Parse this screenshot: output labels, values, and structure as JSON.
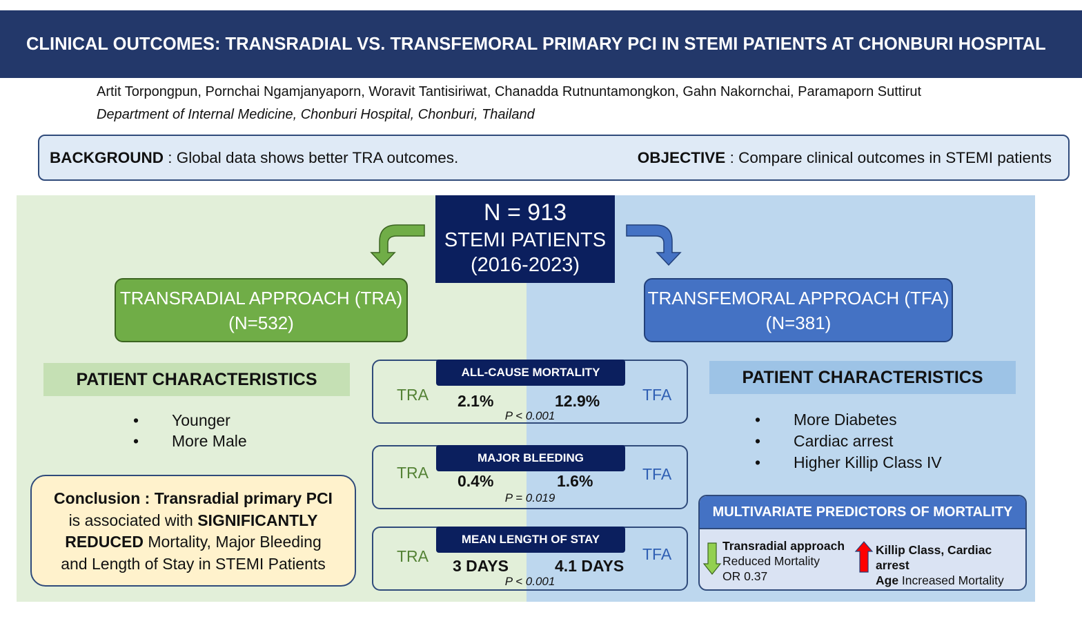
{
  "title": "CLINICAL OUTCOMES: TRANSRADIAL VS. TRANSFEMORAL PRIMARY PCI IN STEMI PATIENTS AT CHONBURI HOSPITAL",
  "authors": "Artit Torpongpun, Pornchai Ngamjanyaporn, Woravit Tantisiriwat, Chanadda Rutnuntamongkon, Gahn Nakornchai, Paramaporn Suttirut",
  "affiliation": "Department of Internal Medicine, Chonburi Hospital, Chonburi, Thailand",
  "background": {
    "label": "BACKGROUND",
    "text": " : Global data shows better TRA outcomes."
  },
  "objective": {
    "label": "OBJECTIVE",
    "text": " : Compare clinical outcomes in STEMI patients"
  },
  "total": {
    "n": "N = 913",
    "line2": "STEMI PATIENTS",
    "line3": "(2016-2023)"
  },
  "tra": {
    "title": "TRANSRADIAL APPROACH (TRA)",
    "n": "(N=532)",
    "pc_title": "PATIENT CHARACTERISTICS",
    "items": [
      "Younger",
      "More Male"
    ]
  },
  "tfa": {
    "title": "TRANSFEMORAL APPROACH (TFA)",
    "n": "(N=381)",
    "pc_title": "PATIENT CHARACTERISTICS",
    "items": [
      "More Diabetes",
      "Cardiac arrest",
      "Higher Killip Class IV"
    ]
  },
  "bullet": "•",
  "outcomes": [
    {
      "title": "ALL-CAUSE MORTALITY",
      "tra_label": "TRA",
      "tfa_label": "TFA",
      "tra": "2.1%",
      "tfa": "12.9%",
      "p": "P < 0.001"
    },
    {
      "title": "MAJOR BLEEDING",
      "tra_label": "TRA",
      "tfa_label": "TFA",
      "tra": "0.4%",
      "tfa": "1.6%",
      "p": "P = 0.019"
    },
    {
      "title": "MEAN LENGTH OF STAY",
      "tra_label": "TRA",
      "tfa_label": "TFA",
      "tra": "3 DAYS",
      "tfa": "4.1 DAYS",
      "p": "P < 0.001"
    }
  ],
  "conclusion": {
    "label": "Conclusion",
    "t1": " : Transradial primary PCI",
    "t2": "is associated with ",
    "t3": "SIGNIFICANTLY",
    "t4": "REDUCED",
    "t5": " Mortality, Major Bleeding",
    "t6": "and Length of Stay in STEMI Patients"
  },
  "multivariate": {
    "title": "MULTIVARIATE PREDICTORS OF MORTALITY",
    "left_bold": "Transradial approach",
    "left_l2": "Reduced Mortality",
    "left_l3": "OR 0.37",
    "right_bold": "Killip Class, Cardiac arrest",
    "right_bold2": "Age",
    "right_l2": " Increased Mortality"
  },
  "colors": {
    "navy": "#0b1f5e",
    "green": "#70ad47",
    "blue": "#4472c4",
    "red": "#ff0000"
  }
}
